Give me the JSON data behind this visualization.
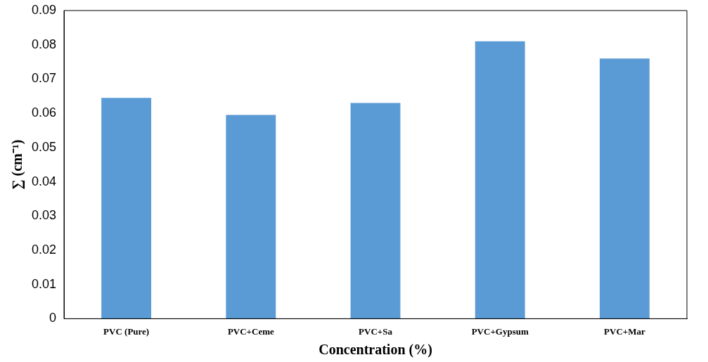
{
  "chart_data": {
    "type": "bar",
    "xlabel": "Concentration (%)",
    "ylabel": "∑ (cm⁻¹)",
    "categories": [
      "PVC (Pure)",
      "PVC+Ceme",
      "PVC+Sa",
      "PVC+Gypsum",
      "PVC+Mar"
    ],
    "values": [
      0.0645,
      0.0595,
      0.063,
      0.081,
      0.076
    ],
    "color": "#5b9bd5",
    "ylim": [
      0,
      0.09
    ],
    "yticks": [
      0,
      0.01,
      0.02,
      0.03,
      0.04,
      0.05,
      0.06,
      0.07,
      0.08,
      0.09
    ],
    "grid": false,
    "legend": false
  }
}
